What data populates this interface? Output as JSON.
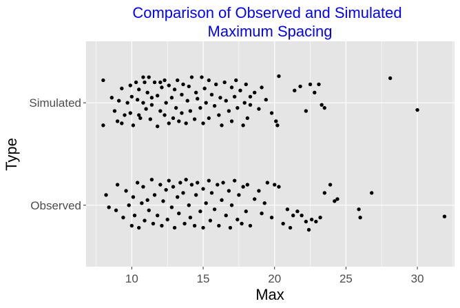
{
  "chart_data": {
    "type": "scatter",
    "title": [
      "Comparison of Observed and Simulated",
      "Maximum Spacing"
    ],
    "xlabel": "Max",
    "ylabel": "Type",
    "xlim": [
      6.8,
      32.6
    ],
    "x_ticks": [
      10,
      15,
      20,
      25,
      30
    ],
    "x_tick_labels": [
      "10",
      "15",
      "20",
      "25",
      "30"
    ],
    "categories": [
      "Observed",
      "Simulated"
    ],
    "grid": true,
    "point_color": "#000000",
    "panel_color": "#e5e5e5",
    "grid_color": "#ffffff",
    "title_color": "#0000ff",
    "series": [
      {
        "category": "Simulated",
        "points": [
          [
            8.0,
            0.22
          ],
          [
            8.0,
            -0.22
          ],
          [
            8.6,
            0.05
          ],
          [
            8.8,
            -0.08
          ],
          [
            9.0,
            -0.18
          ],
          [
            9.1,
            0.02
          ],
          [
            9.3,
            0.14
          ],
          [
            9.3,
            -0.2
          ],
          [
            9.5,
            -0.12
          ],
          [
            9.7,
            0.0
          ],
          [
            9.9,
            -0.1
          ],
          [
            9.9,
            0.17
          ],
          [
            10.0,
            0.06
          ],
          [
            10.1,
            -0.22
          ],
          [
            10.3,
            0.2
          ],
          [
            10.4,
            0.03
          ],
          [
            10.5,
            -0.12
          ],
          [
            10.5,
            0.13
          ],
          [
            10.6,
            -0.15
          ],
          [
            10.8,
            0.0
          ],
          [
            10.8,
            0.25
          ],
          [
            10.9,
            0.2
          ],
          [
            11.0,
            -0.06
          ],
          [
            11.1,
            0.1
          ],
          [
            11.2,
            0.25
          ],
          [
            11.3,
            -0.16
          ],
          [
            11.4,
            0.05
          ],
          [
            11.4,
            -0.02
          ],
          [
            11.6,
            0.2
          ],
          [
            11.8,
            0.07
          ],
          [
            11.8,
            -0.23
          ],
          [
            12.0,
            0.2
          ],
          [
            12.0,
            -0.08
          ],
          [
            12.1,
            0.15
          ],
          [
            12.3,
            0.22
          ],
          [
            12.3,
            -0.12
          ],
          [
            12.4,
            0.0
          ],
          [
            12.6,
            0.17
          ],
          [
            12.6,
            -0.2
          ],
          [
            12.8,
            0.05
          ],
          [
            12.9,
            -0.15
          ],
          [
            13.0,
            0.13
          ],
          [
            13.1,
            -0.05
          ],
          [
            13.2,
            0.22
          ],
          [
            13.3,
            -0.18
          ],
          [
            13.5,
            0.08
          ],
          [
            13.5,
            -0.1
          ],
          [
            13.6,
            0.18
          ],
          [
            13.8,
            -0.2
          ],
          [
            13.9,
            0.02
          ],
          [
            14.0,
            0.16
          ],
          [
            14.1,
            -0.08
          ],
          [
            14.2,
            0.25
          ],
          [
            14.4,
            -0.16
          ],
          [
            14.5,
            0.1
          ],
          [
            14.6,
            0.04
          ],
          [
            14.8,
            -0.05
          ],
          [
            14.9,
            0.25
          ],
          [
            15.0,
            -0.2
          ],
          [
            15.1,
            0.14
          ],
          [
            15.2,
            0.0
          ],
          [
            15.4,
            0.22
          ],
          [
            15.4,
            -0.15
          ],
          [
            15.6,
            0.08
          ],
          [
            15.8,
            -0.03
          ],
          [
            15.9,
            0.18
          ],
          [
            16.1,
            -0.12
          ],
          [
            16.2,
            0.05
          ],
          [
            16.3,
            -0.22
          ],
          [
            16.5,
            0.2
          ],
          [
            16.6,
            0.02
          ],
          [
            16.8,
            -0.08
          ],
          [
            17.0,
            0.15
          ],
          [
            17.0,
            -0.18
          ],
          [
            17.2,
            0.06
          ],
          [
            17.3,
            0.22
          ],
          [
            17.4,
            -0.05
          ],
          [
            17.6,
            0.12
          ],
          [
            17.8,
            -0.22
          ],
          [
            17.9,
            0.0
          ],
          [
            18.0,
            0.18
          ],
          [
            18.1,
            -0.15
          ],
          [
            18.3,
            0.06
          ],
          [
            18.3,
            -0.02
          ],
          [
            18.6,
            0.1
          ],
          [
            18.9,
            -0.06
          ],
          [
            19.1,
            0.15
          ],
          [
            19.4,
            0.03
          ],
          [
            19.8,
            -0.1
          ],
          [
            20.1,
            -0.18
          ],
          [
            20.2,
            -0.22
          ],
          [
            20.3,
            0.26
          ],
          [
            21.4,
            0.12
          ],
          [
            21.8,
            0.16
          ],
          [
            22.2,
            -0.08
          ],
          [
            22.5,
            0.18
          ],
          [
            22.8,
            0.1
          ],
          [
            23.1,
            0.18
          ],
          [
            23.3,
            -0.02
          ],
          [
            23.5,
            -0.05
          ],
          [
            28.1,
            0.24
          ],
          [
            30.0,
            -0.07
          ]
        ]
      },
      {
        "category": "Observed",
        "points": [
          [
            8.2,
            0.1
          ],
          [
            8.4,
            -0.02
          ],
          [
            8.9,
            -0.05
          ],
          [
            9.0,
            0.2
          ],
          [
            9.4,
            -0.12
          ],
          [
            9.6,
            0.14
          ],
          [
            9.8,
            0.0
          ],
          [
            10.0,
            -0.2
          ],
          [
            10.1,
            0.08
          ],
          [
            10.2,
            -0.1
          ],
          [
            10.4,
            0.22
          ],
          [
            10.5,
            -0.22
          ],
          [
            10.7,
            0.02
          ],
          [
            10.8,
            0.18
          ],
          [
            10.9,
            -0.15
          ],
          [
            11.1,
            0.05
          ],
          [
            11.2,
            -0.05
          ],
          [
            11.4,
            0.25
          ],
          [
            11.5,
            -0.18
          ],
          [
            11.6,
            0.1
          ],
          [
            11.8,
            -0.1
          ],
          [
            12.0,
            0.2
          ],
          [
            12.1,
            -0.2
          ],
          [
            12.2,
            0.04
          ],
          [
            12.4,
            0.15
          ],
          [
            12.5,
            -0.14
          ],
          [
            12.6,
            0.24
          ],
          [
            12.8,
            -0.02
          ],
          [
            12.9,
            0.18
          ],
          [
            13.0,
            -0.22
          ],
          [
            13.2,
            0.08
          ],
          [
            13.3,
            -0.08
          ],
          [
            13.4,
            0.22
          ],
          [
            13.6,
            0.12
          ],
          [
            13.7,
            -0.18
          ],
          [
            13.8,
            0.25
          ],
          [
            14.0,
            0.0
          ],
          [
            14.1,
            -0.12
          ],
          [
            14.2,
            0.2
          ],
          [
            14.4,
            -0.2
          ],
          [
            14.5,
            0.1
          ],
          [
            14.6,
            0.22
          ],
          [
            14.8,
            -0.06
          ],
          [
            15.0,
            0.16
          ],
          [
            15.0,
            -0.22
          ],
          [
            15.2,
            0.02
          ],
          [
            15.4,
            0.24
          ],
          [
            15.5,
            -0.15
          ],
          [
            15.6,
            0.12
          ],
          [
            15.8,
            -0.04
          ],
          [
            16.0,
            0.2
          ],
          [
            16.1,
            -0.2
          ],
          [
            16.3,
            0.05
          ],
          [
            16.4,
            0.22
          ],
          [
            16.6,
            -0.1
          ],
          [
            16.8,
            0.14
          ],
          [
            16.9,
            -0.22
          ],
          [
            17.0,
            0.0
          ],
          [
            17.2,
            0.24
          ],
          [
            17.4,
            -0.14
          ],
          [
            17.5,
            0.1
          ],
          [
            17.7,
            -0.18
          ],
          [
            17.8,
            0.18
          ],
          [
            18.0,
            -0.06
          ],
          [
            18.1,
            0.2
          ],
          [
            18.3,
            -0.2
          ],
          [
            18.6,
            0.06
          ],
          [
            18.9,
            0.14
          ],
          [
            19.1,
            -0.08
          ],
          [
            19.3,
            0.02
          ],
          [
            19.5,
            0.22
          ],
          [
            19.8,
            -0.12
          ],
          [
            20.0,
            0.2
          ],
          [
            20.3,
            0.18
          ],
          [
            20.6,
            -0.18
          ],
          [
            20.9,
            -0.04
          ],
          [
            21.1,
            -0.22
          ],
          [
            21.3,
            -0.1
          ],
          [
            21.6,
            -0.06
          ],
          [
            21.9,
            -0.1
          ],
          [
            22.2,
            -0.16
          ],
          [
            22.4,
            -0.24
          ],
          [
            22.6,
            -0.14
          ],
          [
            22.9,
            -0.16
          ],
          [
            23.2,
            -0.12
          ],
          [
            23.5,
            0.12
          ],
          [
            23.9,
            0.2
          ],
          [
            24.2,
            0.04
          ],
          [
            24.4,
            0.06
          ],
          [
            25.9,
            -0.04
          ],
          [
            26.0,
            -0.12
          ],
          [
            26.8,
            0.12
          ],
          [
            31.9,
            -0.11
          ]
        ]
      }
    ]
  }
}
